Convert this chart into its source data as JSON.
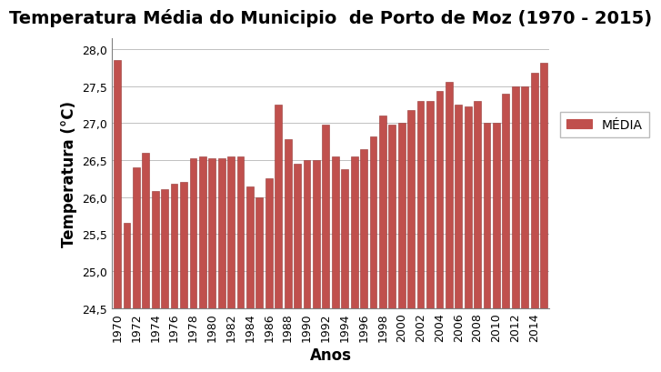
{
  "title": "Temperatura Média do Municipio  de Porto de Moz (1970 - 2015)",
  "xlabel": "Anos",
  "ylabel": "Temperatura (°C)",
  "legend_label": "MÉDIA",
  "bar_color": "#C0504D",
  "bar_edge_color": "#943634",
  "background_color": "#FFFFFF",
  "ylim": [
    24.5,
    28.15
  ],
  "yticks": [
    24.5,
    25.0,
    25.5,
    26.0,
    26.5,
    27.0,
    27.5,
    28.0
  ],
  "years": [
    1970,
    1971,
    1972,
    1973,
    1974,
    1975,
    1976,
    1977,
    1978,
    1979,
    1980,
    1981,
    1982,
    1983,
    1984,
    1985,
    1986,
    1987,
    1988,
    1989,
    1990,
    1991,
    1992,
    1993,
    1994,
    1995,
    1996,
    1997,
    1998,
    1999,
    2000,
    2001,
    2002,
    2003,
    2004,
    2005,
    2006,
    2007,
    2008,
    2009,
    2010,
    2011,
    2012,
    2013,
    2014,
    2015
  ],
  "values": [
    27.85,
    25.65,
    26.4,
    26.6,
    26.08,
    26.1,
    26.18,
    26.2,
    26.53,
    26.55,
    26.53,
    26.52,
    26.55,
    26.55,
    26.14,
    26.0,
    26.25,
    27.25,
    26.78,
    26.45,
    26.5,
    26.5,
    26.98,
    26.55,
    26.38,
    26.55,
    26.65,
    26.82,
    27.1,
    26.98,
    27.0,
    27.17,
    27.3,
    27.3,
    27.43,
    27.56,
    27.25,
    27.22,
    27.3,
    27.0,
    27.0,
    27.4,
    27.5,
    27.5,
    27.68,
    27.82
  ],
  "xtick_years": [
    1970,
    1972,
    1974,
    1976,
    1978,
    1980,
    1982,
    1984,
    1986,
    1988,
    1990,
    1992,
    1994,
    1996,
    1998,
    2000,
    2002,
    2004,
    2006,
    2008,
    2010,
    2012,
    2014
  ],
  "title_fontsize": 14,
  "axis_label_fontsize": 12,
  "tick_fontsize": 9
}
